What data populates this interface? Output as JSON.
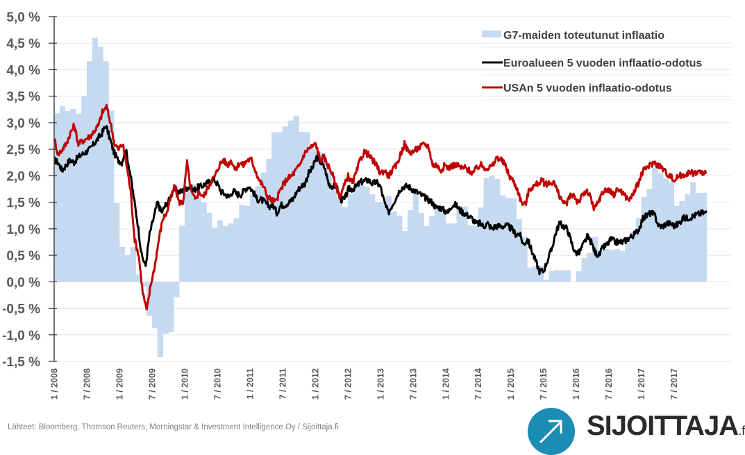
{
  "chart_data": {
    "type": "bar+line",
    "title": "",
    "xlabel": "",
    "ylabel": "",
    "ylim": [
      -1.5,
      5.0
    ],
    "y_ticks": [
      "5,0 %",
      "4,5 %",
      "4,0 %",
      "3,5 %",
      "3,0 %",
      "2,5 %",
      "2,0 %",
      "1,5 %",
      "1,0 %",
      "0,5 %",
      "0,0 %",
      "-0,5 %",
      "-1,0 %",
      "-1,5 %"
    ],
    "y_tick_values": [
      5.0,
      4.5,
      4.0,
      3.5,
      3.0,
      2.5,
      2.0,
      1.5,
      1.0,
      0.5,
      0.0,
      -0.5,
      -1.0,
      -1.5
    ],
    "x_ticks": [
      "1 / 2008",
      "7 / 2008",
      "1 / 2009",
      "7 / 2009",
      "1 / 2010",
      "7 / 2010",
      "1 / 2011",
      "7 / 2011",
      "1 / 2012",
      "7 / 2012",
      "1 / 2013",
      "7 / 2013",
      "1 / 2014",
      "7 / 2014",
      "1 / 2015",
      "7 / 2015",
      "1 / 2016",
      "7 / 2016",
      "1 / 2017",
      "7 / 2017"
    ],
    "x_tick_months": [
      0,
      6,
      12,
      18,
      24,
      30,
      36,
      42,
      48,
      54,
      60,
      66,
      72,
      78,
      84,
      90,
      96,
      102,
      108,
      114
    ],
    "x_range_months": [
      0,
      124.5
    ],
    "grid": "horizontal",
    "legend_position": "top-right",
    "series": [
      {
        "name": "G7-maiden toteutunut inflaatio",
        "kind": "bar",
        "color": "#c5d9f1",
        "start": "1/2008",
        "frequency": "monthly",
        "values": [
          3.18,
          3.31,
          3.22,
          3.26,
          3.17,
          3.5,
          4.16,
          4.6,
          4.43,
          4.16,
          3.23,
          1.48,
          0.66,
          0.5,
          0.66,
          0.14,
          -0.09,
          -0.64,
          -0.87,
          -1.42,
          -0.98,
          -0.95,
          -0.29,
          1.06,
          1.75,
          1.84,
          1.58,
          1.5,
          1.3,
          1.02,
          1.16,
          1.05,
          1.1,
          1.2,
          1.45,
          1.43,
          1.65,
          1.81,
          2.06,
          2.32,
          2.82,
          2.82,
          2.93,
          3.04,
          3.13,
          2.83,
          2.82,
          2.51,
          2.46,
          2.44,
          2.12,
          1.81,
          1.56,
          1.41,
          1.65,
          1.83,
          1.83,
          1.79,
          1.65,
          1.5,
          1.51,
          1.62,
          1.33,
          1.24,
          0.96,
          1.35,
          1.74,
          1.3,
          1.05,
          1.24,
          1.43,
          1.3,
          1.1,
          1.1,
          1.43,
          1.42,
          1.07,
          1.05,
          1.4,
          1.96,
          2.0,
          1.94,
          1.63,
          1.58,
          1.57,
          1.18,
          0.85,
          0.27,
          0.3,
          0.3,
          0.03,
          0.2,
          0.22,
          0.22,
          0.22,
          0.0,
          0.2,
          0.45,
          0.55,
          0.85,
          0.6,
          0.62,
          0.6,
          0.62,
          0.58,
          0.8,
          0.95,
          1.2,
          1.6,
          1.75,
          2.15,
          2.05,
          1.95,
          1.88,
          1.43,
          1.52,
          1.65,
          1.88,
          1.68,
          1.68
        ]
      },
      {
        "name": "Euroalueen 5 vuoden inflaatio-odotus",
        "kind": "line",
        "color": "#000000",
        "start": "1/2008",
        "frequency": "semi-monthly (approx.)",
        "values": [
          2.3,
          2.25,
          2.1,
          2.2,
          2.3,
          2.25,
          2.35,
          2.4,
          2.45,
          2.5,
          2.6,
          2.7,
          2.8,
          2.95,
          2.7,
          2.45,
          2.3,
          2.25,
          2.5,
          2.1,
          1.6,
          1.1,
          0.5,
          0.3,
          0.9,
          1.2,
          1.5,
          1.3,
          1.45,
          1.55,
          1.75,
          1.7,
          1.7,
          1.75,
          1.8,
          1.72,
          1.78,
          1.8,
          1.85,
          1.88,
          1.95,
          1.85,
          1.7,
          1.65,
          1.6,
          1.72,
          1.65,
          1.65,
          1.75,
          1.8,
          1.7,
          1.55,
          1.55,
          1.5,
          1.42,
          1.45,
          1.3,
          1.45,
          1.45,
          1.5,
          1.55,
          1.7,
          1.8,
          1.85,
          2.05,
          2.15,
          2.35,
          2.25,
          2.15,
          1.85,
          1.8,
          1.8,
          1.55,
          1.55,
          1.75,
          1.75,
          1.8,
          1.88,
          1.9,
          1.92,
          1.85,
          1.88,
          1.8,
          1.5,
          1.3,
          1.45,
          1.6,
          1.75,
          1.8,
          1.8,
          1.75,
          1.7,
          1.65,
          1.6,
          1.55,
          1.5,
          1.4,
          1.4,
          1.35,
          1.3,
          1.45,
          1.45,
          1.35,
          1.3,
          1.25,
          1.2,
          1.1,
          1.1,
          1.05,
          1.1,
          1.0,
          1.05,
          1.05,
          1.05,
          1.05,
          1.0,
          0.9,
          0.9,
          0.7,
          0.8,
          0.6,
          0.4,
          0.2,
          0.2,
          0.4,
          0.6,
          0.9,
          1.1,
          1.05,
          1.0,
          0.75,
          0.55,
          0.55,
          0.7,
          0.85,
          0.75,
          0.55,
          0.5,
          0.65,
          0.7,
          0.8,
          0.75,
          0.75,
          0.75,
          0.8,
          0.85,
          0.9,
          1.0,
          1.2,
          1.25,
          1.3,
          1.25,
          1.05,
          1.05,
          1.1,
          1.1,
          1.05,
          1.1,
          1.2,
          1.2,
          1.22,
          1.25,
          1.28,
          1.3,
          1.3
        ]
      },
      {
        "name": "USAn 5 vuoden inflaatio-odotus",
        "kind": "line",
        "color": "#c00000",
        "start": "1/2008",
        "frequency": "semi-monthly (approx.)",
        "values": [
          2.7,
          2.4,
          2.5,
          2.6,
          2.8,
          2.95,
          2.6,
          2.65,
          2.7,
          2.75,
          2.85,
          2.95,
          3.2,
          3.3,
          3.0,
          2.6,
          2.5,
          2.6,
          2.2,
          1.7,
          0.8,
          0.5,
          -0.2,
          -0.55,
          -0.05,
          0.3,
          0.8,
          1.2,
          1.3,
          1.6,
          1.8,
          1.5,
          1.5,
          2.25,
          1.7,
          1.55,
          1.7,
          1.6,
          1.75,
          1.9,
          2.0,
          2.2,
          2.3,
          2.2,
          2.3,
          2.1,
          2.25,
          2.2,
          2.3,
          2.3,
          2.1,
          1.9,
          1.8,
          1.6,
          1.55,
          1.5,
          1.7,
          1.85,
          1.95,
          2.0,
          2.1,
          2.2,
          2.4,
          2.5,
          2.55,
          2.6,
          2.3,
          2.35,
          2.2,
          2.05,
          1.8,
          1.6,
          1.8,
          2.0,
          1.85,
          2.05,
          2.3,
          2.45,
          2.4,
          2.3,
          2.2,
          2.05,
          2.1,
          2.0,
          2.1,
          2.2,
          2.4,
          2.6,
          2.45,
          2.45,
          2.5,
          2.55,
          2.6,
          2.55,
          2.2,
          2.2,
          2.1,
          2.2,
          2.15,
          2.2,
          2.2,
          2.15,
          2.15,
          2.1,
          2.05,
          2.15,
          2.2,
          2.15,
          2.15,
          2.2,
          2.35,
          2.3,
          2.2,
          2.0,
          1.9,
          1.75,
          1.5,
          1.45,
          1.75,
          1.8,
          1.85,
          1.9,
          1.85,
          1.85,
          1.9,
          1.7,
          1.55,
          1.45,
          1.6,
          1.65,
          1.5,
          1.6,
          1.7,
          1.65,
          1.35,
          1.5,
          1.65,
          1.75,
          1.7,
          1.65,
          1.75,
          1.7,
          1.6,
          1.55,
          1.7,
          1.85,
          2.05,
          2.15,
          2.2,
          2.25,
          2.2,
          2.15,
          2.05,
          2.0,
          1.9,
          2.0,
          2.0,
          2.05,
          2.05,
          2.05,
          2.08,
          2.05,
          2.05
        ]
      }
    ]
  },
  "legend": {
    "items": [
      {
        "label": "G7-maiden toteutunut inflaatio",
        "symbol": "bar",
        "color": "#c5d9f1"
      },
      {
        "label": "Euroalueen 5 vuoden inflaatio-odotus",
        "symbol": "line",
        "color": "#000000"
      },
      {
        "label": "USAn 5 vuoden inflaatio-odotus",
        "symbol": "line",
        "color": "#c00000"
      }
    ]
  },
  "footer": {
    "source": "Lähteet: Bloomberg, Thomson Reuters, Morningstar & Investment Intelligence Oy  / Sijoittaja.fi",
    "logo_text": "SIJOITTAJA",
    "logo_suffix": ".fi"
  }
}
